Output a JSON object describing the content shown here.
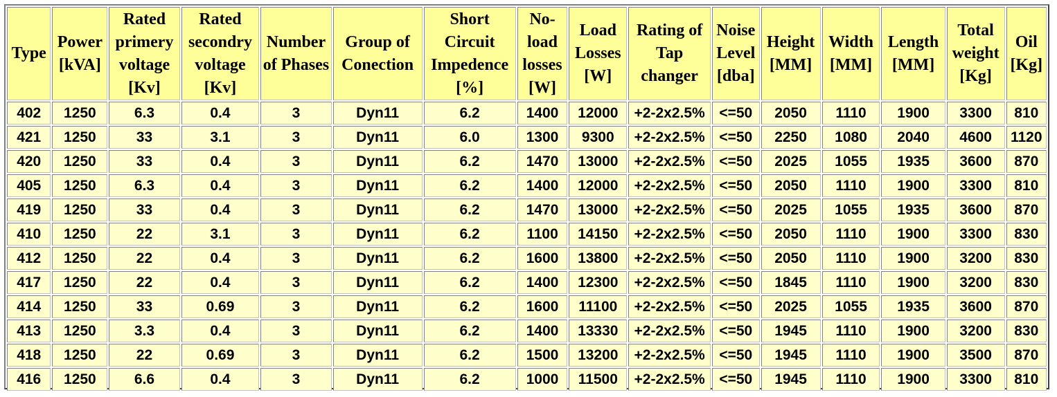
{
  "table": {
    "headers": [
      "Type",
      "Power [kVA]",
      "Rated primery voltage [Kv]",
      "Rated secondry voltage [Kv]",
      "Number of Phases",
      "Group of Conection",
      "Short Circuit Impedence [%]",
      "No-load losses [W]",
      "Load Losses [W]",
      "Rating of Tap changer",
      "Noise Level [dba]",
      "Height [MM]",
      "Width [MM]",
      "Length [MM]",
      "Total weight [Kg]",
      "Oil [Kg]"
    ],
    "rows": [
      [
        "402",
        "1250",
        "6.3",
        "0.4",
        "3",
        "Dyn11",
        "6.2",
        "1400",
        "12000",
        "+2-2x2.5%",
        "<=50",
        "2050",
        "1110",
        "1900",
        "3300",
        "810"
      ],
      [
        "421",
        "1250",
        "33",
        "3.1",
        "3",
        "Dyn11",
        "6.0",
        "1300",
        "9300",
        "+2-2x2.5%",
        "<=50",
        "2250",
        "1080",
        "2040",
        "4600",
        "1120"
      ],
      [
        "420",
        "1250",
        "33",
        "0.4",
        "3",
        "Dyn11",
        "6.2",
        "1470",
        "13000",
        "+2-2x2.5%",
        "<=50",
        "2025",
        "1055",
        "1935",
        "3600",
        "870"
      ],
      [
        "405",
        "1250",
        "6.3",
        "0.4",
        "3",
        "Dyn11",
        "6.2",
        "1400",
        "12000",
        "+2-2x2.5%",
        "<=50",
        "2050",
        "1110",
        "1900",
        "3300",
        "810"
      ],
      [
        "419",
        "1250",
        "33",
        "0.4",
        "3",
        "Dyn11",
        "6.2",
        "1470",
        "13000",
        "+2-2x2.5%",
        "<=50",
        "2025",
        "1055",
        "1935",
        "3600",
        "870"
      ],
      [
        "410",
        "1250",
        "22",
        "3.1",
        "3",
        "Dyn11",
        "6.2",
        "1100",
        "14150",
        "+2-2x2.5%",
        "<=50",
        "2050",
        "1110",
        "1900",
        "3300",
        "830"
      ],
      [
        "412",
        "1250",
        "22",
        "0.4",
        "3",
        "Dyn11",
        "6.2",
        "1600",
        "13800",
        "+2-2x2.5%",
        "<=50",
        "2050",
        "1110",
        "1900",
        "3200",
        "830"
      ],
      [
        "417",
        "1250",
        "22",
        "0.4",
        "3",
        "Dyn11",
        "6.2",
        "1400",
        "12300",
        "+2-2x2.5%",
        "<=50",
        "1845",
        "1110",
        "1900",
        "3200",
        "830"
      ],
      [
        "414",
        "1250",
        "33",
        "0.69",
        "3",
        "Dyn11",
        "6.2",
        "1600",
        "11100",
        "+2-2x2.5%",
        "<=50",
        "2025",
        "1055",
        "1935",
        "3600",
        "870"
      ],
      [
        "413",
        "1250",
        "3.3",
        "0.4",
        "3",
        "Dyn11",
        "6.2",
        "1400",
        "13330",
        "+2-2x2.5%",
        "<=50",
        "1945",
        "1110",
        "1900",
        "3200",
        "830"
      ],
      [
        "418",
        "1250",
        "22",
        "0.69",
        "3",
        "Dyn11",
        "6.2",
        "1500",
        "13200",
        "+2-2x2.5%",
        "<=50",
        "1945",
        "1110",
        "1900",
        "3500",
        "870"
      ],
      [
        "416",
        "1250",
        "6.6",
        "0.4",
        "3",
        "Dyn11",
        "6.2",
        "1000",
        "11500",
        "+2-2x2.5%",
        "<=50",
        "1945",
        "1110",
        "1900",
        "3300",
        "810"
      ]
    ]
  }
}
